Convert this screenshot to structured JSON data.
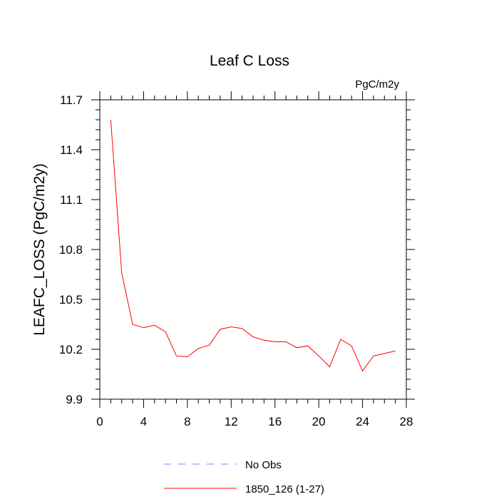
{
  "chart_data": {
    "type": "line",
    "title": "Leaf C Loss",
    "units": "PgC/m2y",
    "xlabel": "",
    "ylabel": "LEAFC_LOSS  (PgC/m2y)",
    "xlim": [
      0,
      28
    ],
    "ylim": [
      9.9,
      11.7
    ],
    "x_ticks": [
      0,
      4,
      8,
      12,
      16,
      20,
      24,
      28
    ],
    "x_tick_labels": [
      "0",
      "4",
      "8",
      "12",
      "16",
      "20",
      "24",
      "28"
    ],
    "y_ticks": [
      9.9,
      10.2,
      10.5,
      10.8,
      11.1,
      11.4,
      11.7
    ],
    "y_tick_labels": [
      "9.9",
      "10.2",
      "10.5",
      "10.8",
      "11.1",
      "11.4",
      "11.7"
    ],
    "grid": false,
    "legend_position": "bottom",
    "legend": [
      {
        "label": "No Obs",
        "color": "#8080ff",
        "dashed": true
      },
      {
        "label": "1850_126 (1-27)",
        "color": "#ff0000",
        "dashed": false
      }
    ],
    "series": [
      {
        "name": "1850_126 (1-27)",
        "color": "#ff0000",
        "x": [
          1,
          2,
          3,
          4,
          5,
          6,
          7,
          8,
          9,
          10,
          11,
          12,
          13,
          14,
          15,
          16,
          17,
          18,
          19,
          20,
          21,
          22,
          23,
          24,
          25,
          26,
          27
        ],
        "y": [
          11.58,
          10.66,
          10.35,
          10.33,
          10.345,
          10.305,
          10.16,
          10.155,
          10.205,
          10.225,
          10.32,
          10.335,
          10.325,
          10.275,
          10.255,
          10.245,
          10.245,
          10.21,
          10.22,
          10.16,
          10.095,
          10.26,
          10.22,
          10.07,
          10.16,
          10.175,
          10.19
        ]
      }
    ]
  }
}
